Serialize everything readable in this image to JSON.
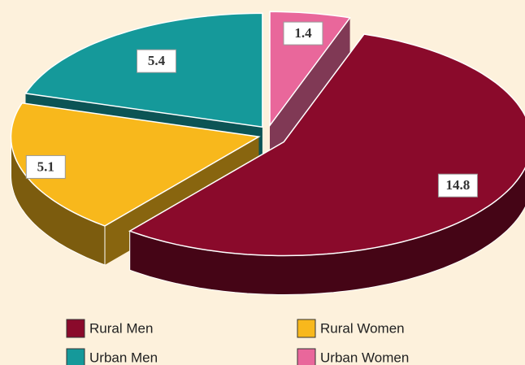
{
  "chart_data": {
    "type": "pie",
    "categories": [
      "Rural Men",
      "Rural Women",
      "Urban Men",
      "Urban Women"
    ],
    "values": [
      14.8,
      5.1,
      5.4,
      1.4
    ],
    "colors": [
      "#8a0a2b",
      "#f8b81c",
      "#15999a",
      "#e9679b"
    ],
    "legend": "bottom"
  }
}
